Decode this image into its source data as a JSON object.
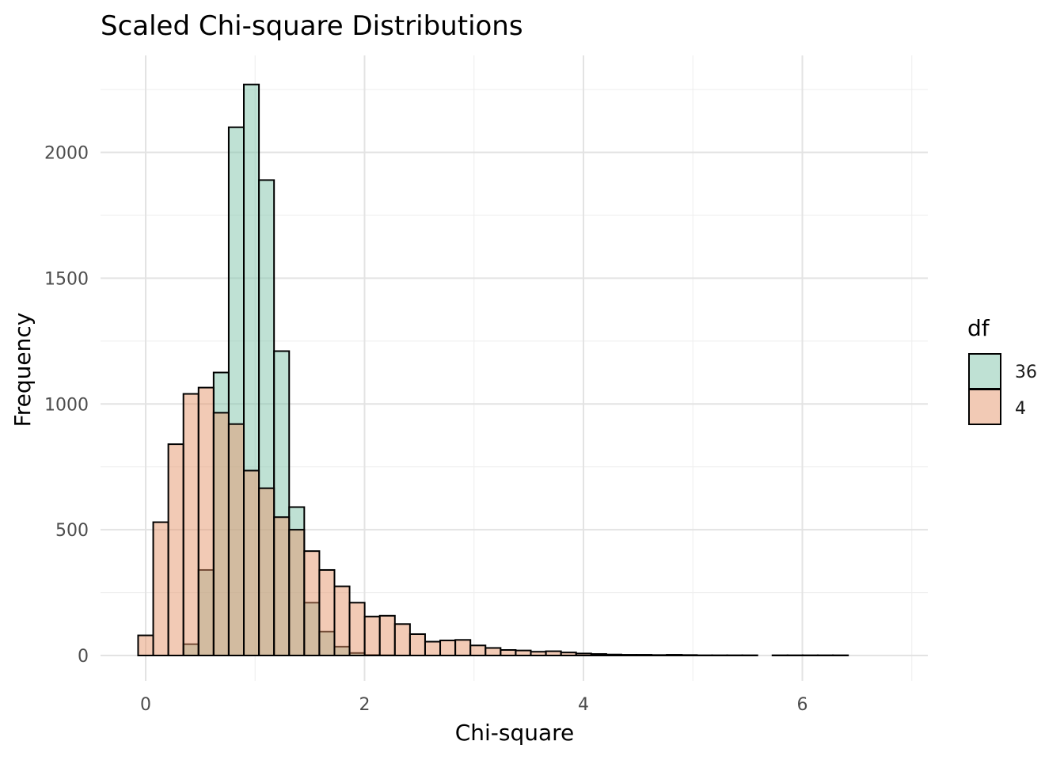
{
  "chart_data": {
    "type": "bar",
    "title": "Scaled Chi-square Distributions",
    "xlabel": "Chi-square",
    "ylabel": "Frequency",
    "xlim": [
      -0.2,
      7.0
    ],
    "ylim": [
      -60,
      2380
    ],
    "x_ticks": [
      0,
      2,
      4,
      6
    ],
    "y_ticks": [
      0,
      500,
      1000,
      1500,
      2000
    ],
    "grid": true,
    "bin_width": 0.138,
    "bin_start": -0.069,
    "legend": {
      "title": "df",
      "position": "right",
      "entries": [
        {
          "label": "36",
          "color": "#7fc4aa"
        },
        {
          "label": "4",
          "color": "#e6956b"
        }
      ]
    },
    "series": [
      {
        "name": "36",
        "color": "#7fc4aa",
        "opacity": 0.5,
        "values": [
          0,
          0,
          0,
          45,
          340,
          1125,
          2100,
          2270,
          1890,
          1210,
          590,
          210,
          95,
          35,
          10,
          2,
          1
        ]
      },
      {
        "name": "4",
        "color": "#e6956b",
        "opacity": 0.5,
        "values": [
          80,
          530,
          840,
          1040,
          1065,
          965,
          920,
          735,
          665,
          550,
          500,
          415,
          340,
          275,
          210,
          155,
          158,
          125,
          85,
          55,
          60,
          62,
          40,
          30,
          22,
          20,
          15,
          17,
          12,
          8,
          6,
          4,
          3,
          3,
          2,
          3,
          2,
          1,
          1,
          1,
          1,
          0,
          1,
          1,
          1,
          1,
          1,
          0,
          0,
          0
        ]
      }
    ]
  }
}
